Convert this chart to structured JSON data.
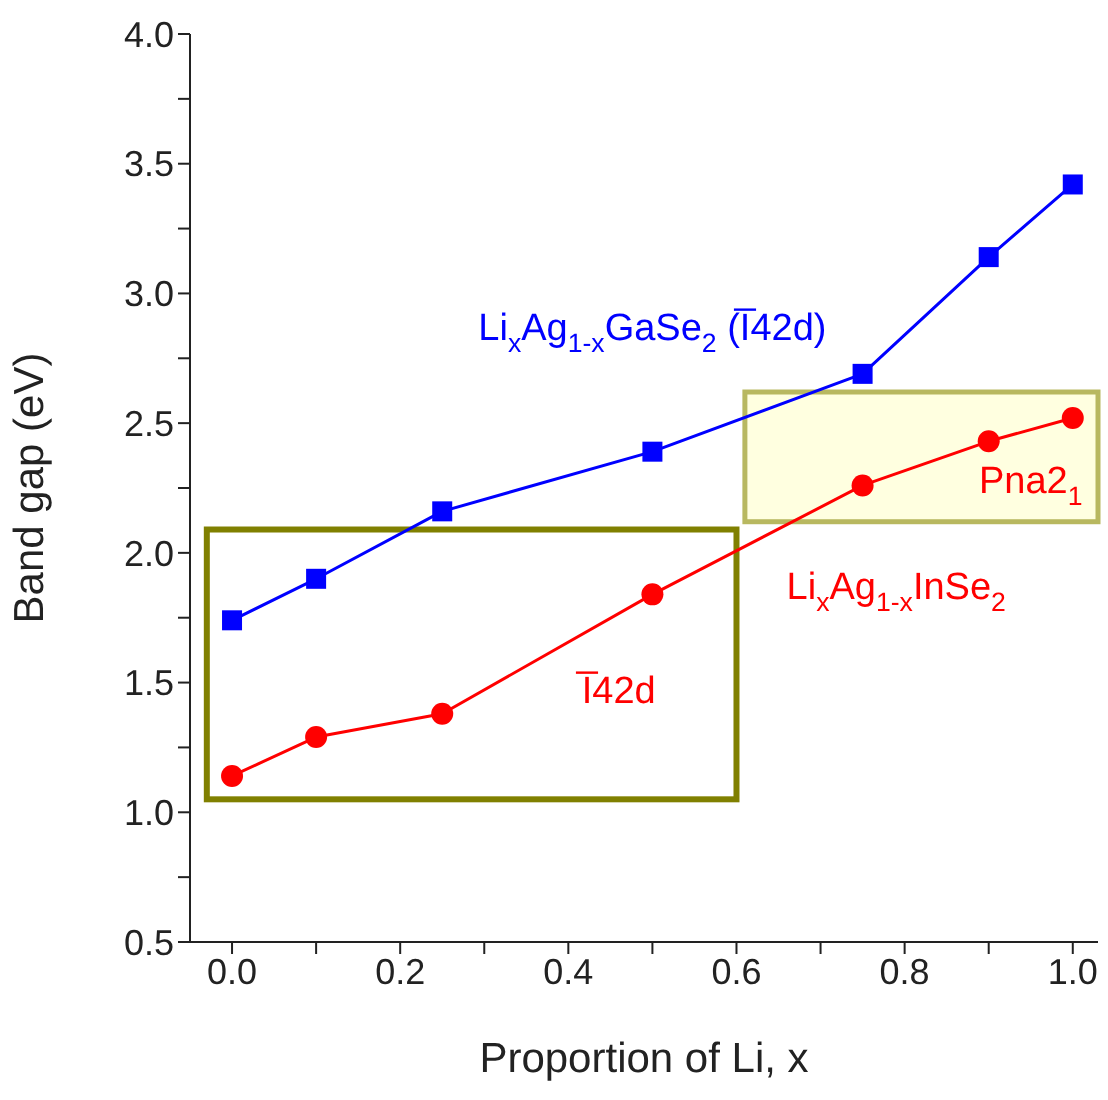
{
  "chart_data": {
    "type": "line",
    "xlabel": "Proportion of Li, x",
    "ylabel": "Band gap (eV)",
    "x": [
      0,
      0.1,
      0.25,
      0.5,
      0.75,
      0.9,
      1.0
    ],
    "series": [
      {
        "name": "Li$_{x}$Ag$_{1-x}$GaSe$_{2}$ (I̅42d)",
        "color": "#0000ff",
        "marker": "square",
        "values": [
          1.74,
          1.9,
          2.16,
          2.39,
          2.69,
          3.14,
          3.42
        ]
      },
      {
        "name": "Li$_{x}$Ag$_{1-x}$InSe$_{2}$",
        "color": "#ff0000",
        "marker": "circle",
        "values": [
          1.14,
          1.29,
          1.38,
          1.84,
          2.26,
          2.43,
          2.52
        ]
      }
    ],
    "xlim": [
      -0.05,
      1.03
    ],
    "xticks": [
      {
        "value": 0,
        "label": "0.0"
      },
      {
        "value": 0.1,
        "label": null
      },
      {
        "value": 0.2,
        "label": "0.2"
      },
      {
        "value": 0.3,
        "label": null
      },
      {
        "value": 0.4,
        "label": "0.4"
      },
      {
        "value": 0.5,
        "label": null
      },
      {
        "value": 0.6,
        "label": "0.6"
      },
      {
        "value": 0.7,
        "label": null
      },
      {
        "value": 0.8,
        "label": "0.8"
      },
      {
        "value": 0.9,
        "label": null
      },
      {
        "value": 1,
        "label": "1.0"
      }
    ],
    "ylim": [
      0.5,
      4.0
    ],
    "yticks": [
      {
        "value": 0.5,
        "label": "0.5"
      },
      {
        "value": 0.75,
        "label": null
      },
      {
        "value": 1,
        "label": "1.0"
      },
      {
        "value": 1.25,
        "label": null
      },
      {
        "value": 1.5,
        "label": "1.5"
      },
      {
        "value": 1.75,
        "label": null
      },
      {
        "value": 2,
        "label": "2.0"
      },
      {
        "value": 2.25,
        "label": null
      },
      {
        "value": 2.5,
        "label": "2.5"
      },
      {
        "value": 2.75,
        "label": null
      },
      {
        "value": 3,
        "label": "3.0"
      },
      {
        "value": 3.25,
        "label": null
      },
      {
        "value": 3.5,
        "label": "3.5"
      },
      {
        "value": 3.75,
        "label": null
      },
      {
        "value": 4,
        "label": "4.0"
      }
    ],
    "annotations": [
      "I̅42d",
      "Pna2$_{1}$"
    ]
  }
}
